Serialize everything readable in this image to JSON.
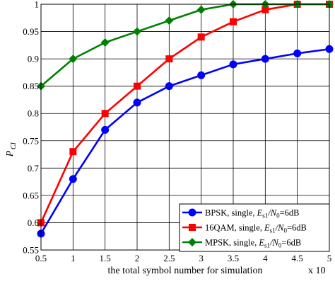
{
  "chart_data": {
    "type": "line",
    "xlabel": "the total symbol number for simulation",
    "ylabel_main": "P",
    "ylabel_sub": "CI",
    "x_multiplier": "x 10",
    "xlim": [
      0.5,
      5
    ],
    "ylim": [
      0.55,
      1
    ],
    "x_ticks": [
      0.5,
      1,
      1.5,
      2,
      2.5,
      3,
      3.5,
      4,
      4.5,
      5
    ],
    "x_tick_labels": [
      "0.5",
      "1",
      "1.5",
      "2",
      "2.5",
      "3",
      "3.5",
      "4",
      "4.5",
      "5"
    ],
    "y_ticks": [
      0.55,
      0.6,
      0.65,
      0.7,
      0.75,
      0.8,
      0.85,
      0.9,
      0.95,
      1
    ],
    "y_tick_labels": [
      "0.55",
      "0.6",
      "0.65",
      "0.7",
      "0.75",
      "0.8",
      "0.85",
      "0.9",
      "0.95",
      "1"
    ],
    "grid": true,
    "legend_position": "bottom-right",
    "x": [
      0.5,
      1,
      1.5,
      2,
      2.5,
      3,
      3.5,
      4,
      4.5,
      5
    ],
    "series": [
      {
        "name": "BPSK, single,",
        "es_label": "E",
        "es_sub": "s1",
        "n0_label": "/N",
        "n0_sub": "0",
        "tail": "=6dB",
        "color": "#0000ff",
        "marker": "circle",
        "values": [
          0.58,
          0.68,
          0.77,
          0.82,
          0.85,
          0.87,
          0.89,
          0.9,
          0.91,
          0.918
        ]
      },
      {
        "name": "16QAM, single,",
        "es_label": "E",
        "es_sub": "s1",
        "n0_label": "/N",
        "n0_sub": "0",
        "tail": "=6dB",
        "color": "#ff0000",
        "marker": "square",
        "values": [
          0.6,
          0.73,
          0.8,
          0.85,
          0.9,
          0.94,
          0.968,
          0.99,
          1.0,
          1.0
        ]
      },
      {
        "name": "MPSK, single,",
        "es_label": "E",
        "es_sub": "s1",
        "n0_label": "/N",
        "n0_sub": "0",
        "tail": "=6dB",
        "color": "#008000",
        "marker": "diamond",
        "values": [
          0.85,
          0.9,
          0.93,
          0.95,
          0.97,
          0.99,
          1.0,
          1.0,
          1.0,
          1.0
        ]
      }
    ]
  }
}
